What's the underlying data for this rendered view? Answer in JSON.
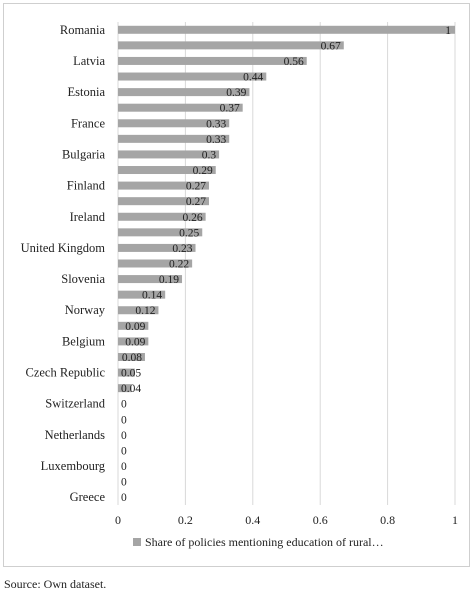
{
  "chart_data": {
    "type": "bar",
    "orientation": "horizontal",
    "categories": [
      "Romania",
      "",
      "Latvia",
      "",
      "Estonia",
      "",
      "France",
      "",
      "Bulgaria",
      "",
      "Finland",
      "",
      "Ireland",
      "",
      "United Kingdom",
      "",
      "Slovenia",
      "",
      "Norway",
      "",
      "Belgium",
      "",
      "Czech Republic",
      "",
      "Switzerland",
      "",
      "Netherlands",
      "",
      "Luxembourg",
      "",
      "Greece"
    ],
    "series": [
      {
        "name": "Share of policies mentioning education of rural…",
        "values": [
          1,
          0.67,
          0.56,
          0.44,
          0.39,
          0.37,
          0.33,
          0.33,
          0.3,
          0.29,
          0.27,
          0.27,
          0.26,
          0.25,
          0.23,
          0.22,
          0.19,
          0.14,
          0.12,
          0.09,
          0.09,
          0.08,
          0.05,
          0.04,
          0,
          0,
          0,
          0,
          0,
          0,
          0
        ],
        "labels": [
          "1",
          "0.67",
          "0.56",
          "0.44",
          "0.39",
          "0.37",
          "0.33",
          "0.33",
          "0.3",
          "0.29",
          "0.27",
          "0.27",
          "0.26",
          "0.25",
          "0.23",
          "0.22",
          "0.19",
          "0.14",
          "0.12",
          "0.09",
          "0.09",
          "0.08",
          "0.05",
          "0.04",
          "0",
          "0",
          "0",
          "0",
          "0",
          "0",
          "0"
        ]
      }
    ],
    "xlim": [
      0,
      1
    ],
    "xticks": [
      "0",
      "0.2",
      "0.4",
      "0.6",
      "0.8",
      "1"
    ],
    "grid": true,
    "legend_position": "bottom",
    "bar_color": "#a5a5a5"
  },
  "source_note": "Source: Own dataset."
}
